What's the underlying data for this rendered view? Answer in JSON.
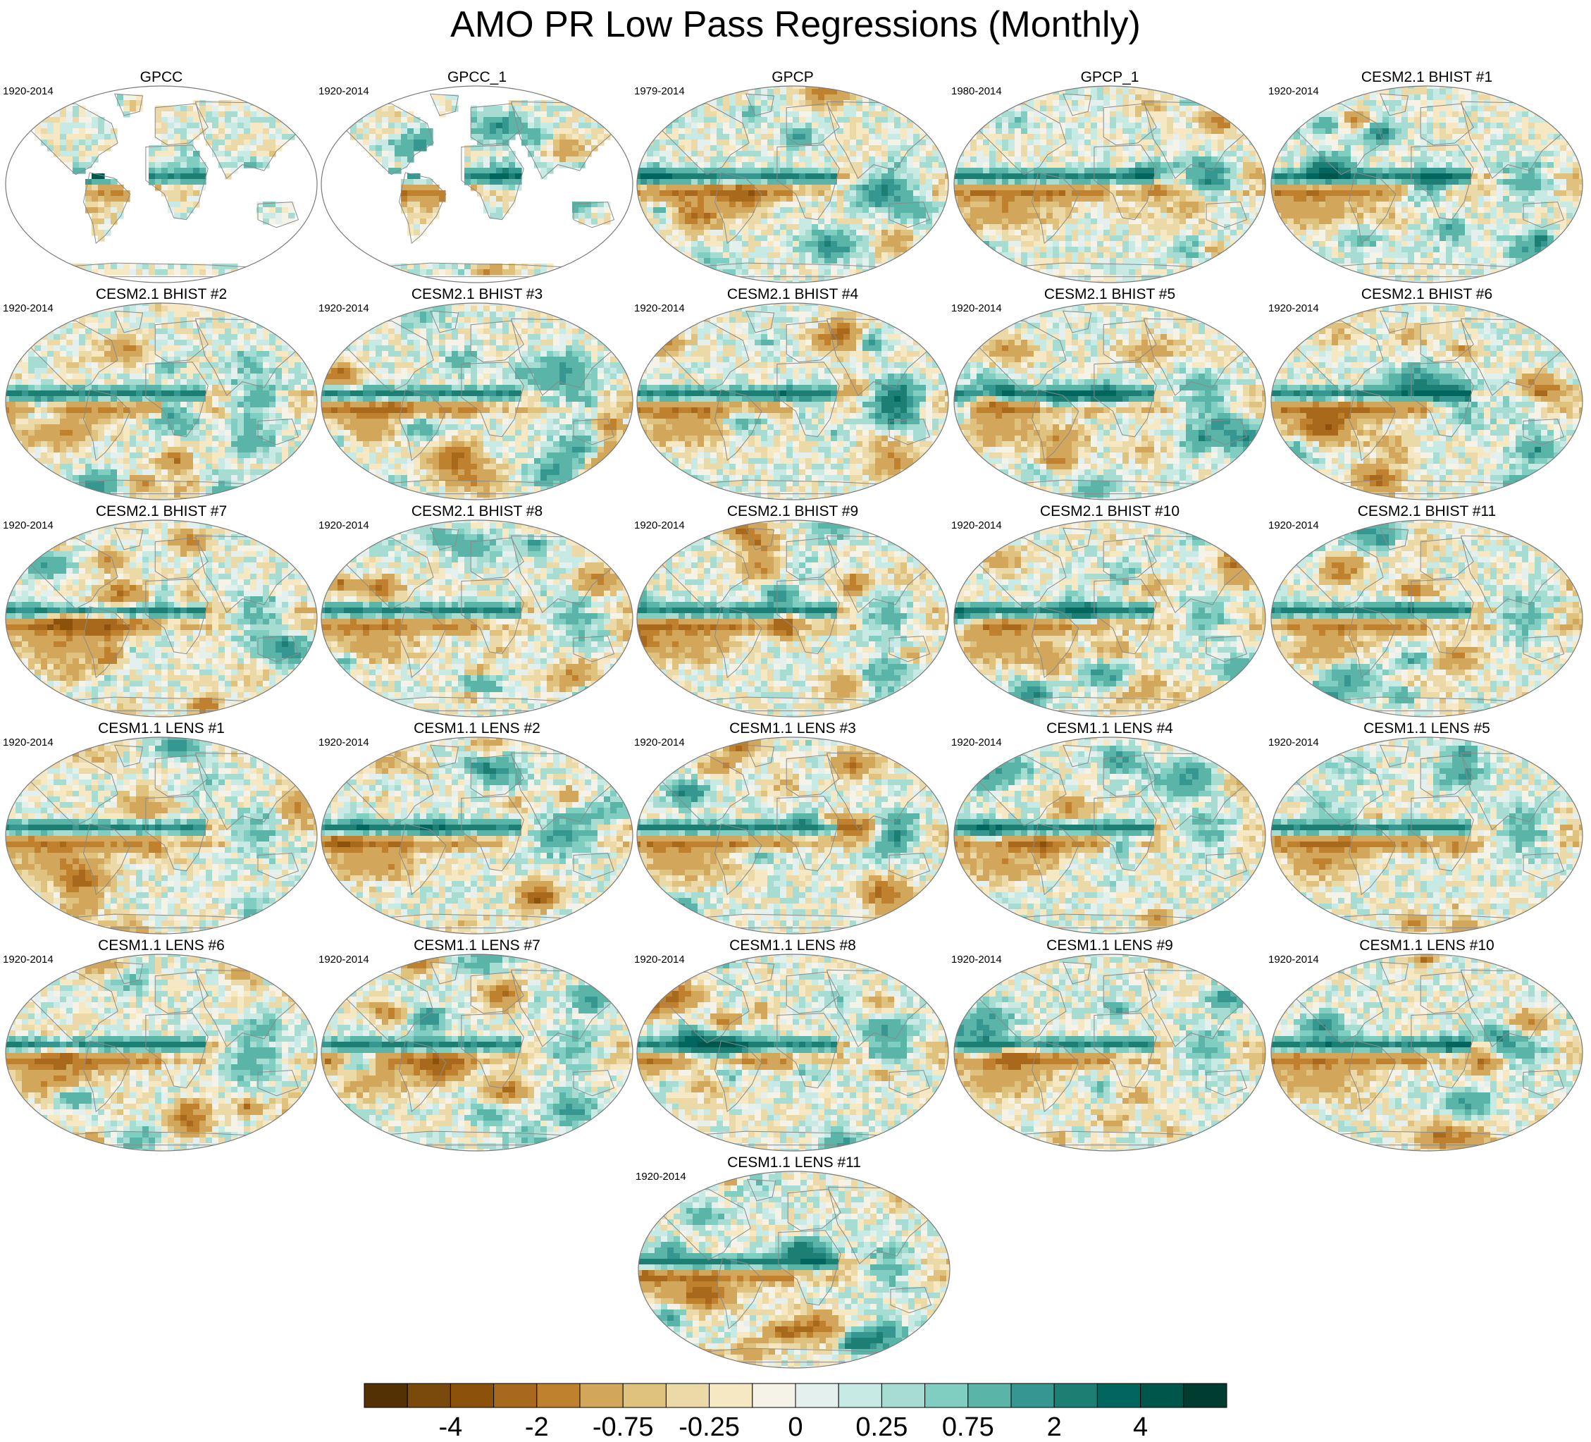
{
  "title": "AMO PR Low Pass Regressions (Monthly)",
  "chart_data": {
    "type": "heatmap",
    "projection": "global map, oval",
    "panels": [
      {
        "title": "GPCC",
        "period": "1920-2014",
        "coverage": "land"
      },
      {
        "title": "GPCC_1",
        "period": "1920-2014",
        "coverage": "land"
      },
      {
        "title": "GPCP",
        "period": "1979-2014",
        "coverage": "global"
      },
      {
        "title": "GPCP_1",
        "period": "1980-2014",
        "coverage": "global"
      },
      {
        "title": "CESM2.1 BHIST #1",
        "period": "1920-2014",
        "coverage": "global"
      },
      {
        "title": "CESM2.1 BHIST #2",
        "period": "1920-2014",
        "coverage": "global"
      },
      {
        "title": "CESM2.1 BHIST #3",
        "period": "1920-2014",
        "coverage": "global"
      },
      {
        "title": "CESM2.1 BHIST #4",
        "period": "1920-2014",
        "coverage": "global"
      },
      {
        "title": "CESM2.1 BHIST #5",
        "period": "1920-2014",
        "coverage": "global"
      },
      {
        "title": "CESM2.1 BHIST #6",
        "period": "1920-2014",
        "coverage": "global"
      },
      {
        "title": "CESM2.1 BHIST #7",
        "period": "1920-2014",
        "coverage": "global"
      },
      {
        "title": "CESM2.1 BHIST #8",
        "period": "1920-2014",
        "coverage": "global"
      },
      {
        "title": "CESM2.1 BHIST #9",
        "period": "1920-2014",
        "coverage": "global"
      },
      {
        "title": "CESM2.1 BHIST #10",
        "period": "1920-2014",
        "coverage": "global"
      },
      {
        "title": "CESM2.1 BHIST #11",
        "period": "1920-2014",
        "coverage": "global"
      },
      {
        "title": "CESM1.1 LENS #1",
        "period": "1920-2014",
        "coverage": "global"
      },
      {
        "title": "CESM1.1 LENS #2",
        "period": "1920-2014",
        "coverage": "global"
      },
      {
        "title": "CESM1.1 LENS #3",
        "period": "1920-2014",
        "coverage": "global"
      },
      {
        "title": "CESM1.1 LENS #4",
        "period": "1920-2014",
        "coverage": "global"
      },
      {
        "title": "CESM1.1 LENS #5",
        "period": "1920-2014",
        "coverage": "global"
      },
      {
        "title": "CESM1.1 LENS #6",
        "period": "1920-2014",
        "coverage": "global"
      },
      {
        "title": "CESM1.1 LENS #7",
        "period": "1920-2014",
        "coverage": "global"
      },
      {
        "title": "CESM1.1 LENS #8",
        "period": "1920-2014",
        "coverage": "global"
      },
      {
        "title": "CESM1.1 LENS #9",
        "period": "1920-2014",
        "coverage": "global"
      },
      {
        "title": "CESM1.1 LENS #10",
        "period": "1920-2014",
        "coverage": "global"
      },
      {
        "title": "CESM1.1 LENS #11",
        "period": "1920-2014",
        "coverage": "global"
      }
    ],
    "colorbar": {
      "colors": [
        "#543005",
        "#7a4a0c",
        "#8c510a",
        "#a9691c",
        "#bf812d",
        "#d2a75c",
        "#dfc27d",
        "#ecd9a8",
        "#f6e8c3",
        "#f5f2e7",
        "#e4f0ee",
        "#c7eae5",
        "#a6dcd2",
        "#80cdc1",
        "#5ab4a8",
        "#35978f",
        "#1d7f74",
        "#01665e",
        "#01564c",
        "#003c30"
      ],
      "tick_labels": [
        "-4",
        "-2",
        "-0.75",
        "-0.25",
        "0",
        "0.25",
        "0.75",
        "2",
        "4"
      ]
    }
  }
}
